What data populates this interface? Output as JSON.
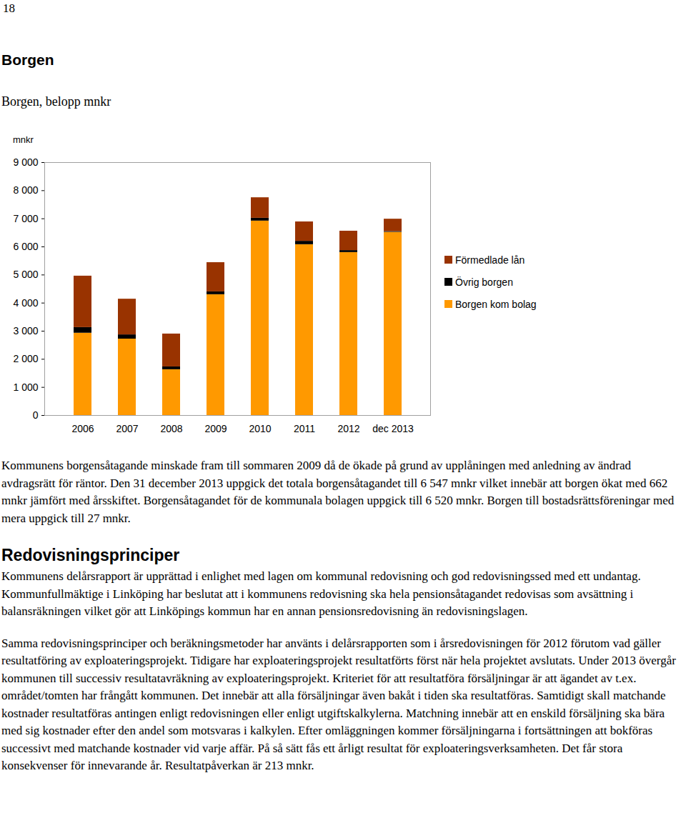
{
  "page_number": "18",
  "heading": "Borgen",
  "chart_data": {
    "type": "bar",
    "stacked": true,
    "title": "Borgen, belopp mnkr",
    "y_label": "mnkr",
    "categories": [
      "2006",
      "2007",
      "2008",
      "2009",
      "2010",
      "2011",
      "2012",
      "dec 2013"
    ],
    "series": [
      {
        "name": "Borgen kom bolag",
        "color": "#ff9900",
        "values": [
          2930,
          2720,
          1630,
          4300,
          6920,
          6080,
          5800,
          6520
        ]
      },
      {
        "name": "Övrig borgen",
        "color": "#000000",
        "values": [
          200,
          150,
          100,
          100,
          100,
          120,
          70,
          27
        ]
      },
      {
        "name": "Förmedlade lån",
        "color": "#993300",
        "values": [
          1830,
          1270,
          1170,
          1040,
          730,
          690,
          690,
          440
        ]
      }
    ],
    "ylim": [
      0,
      9000
    ],
    "yticks": [
      0,
      {
        "value": 1000,
        "label": "1 000"
      },
      {
        "value": 2000,
        "label": "2 000"
      },
      {
        "value": 3000,
        "label": "3 000"
      },
      {
        "value": 4000,
        "label": "4 000"
      },
      {
        "value": 5000,
        "label": "5 000"
      },
      {
        "value": 6000,
        "label": "6 000"
      },
      {
        "value": 7000,
        "label": "7 000"
      },
      {
        "value": 8000,
        "label": "8 000"
      },
      {
        "value": 9000,
        "label": "9 000"
      }
    ],
    "grid": false,
    "legend": "right"
  },
  "paragraphs": [
    "Kommunens borgensåtagande minskade fram till sommaren 2009 då de ökade på grund av upplåningen med anledning av ändrad avdragsrätt för räntor. Den 31 december 2013 uppgick det totala borgensåtagandet till 6 547 mnkr vilket innebär att borgen ökat med 662 mnkr jämfört med årsskiftet. Borgensåtagandet för de kommunala bolagen uppgick till 6 520 mnkr. Borgen till bostadsrättsföreningar med mera uppgick till 27 mnkr."
  ],
  "section": {
    "heading": "Redovisningsprinciper",
    "paragraphs": [
      "Kommunens delårsrapport är upprättad i enlighet med lagen om kommunal redovisning och god redovisningssed med ett undantag. Kommunfullmäktige i Linköping har beslutat att i kommunens redovisning ska hela pensionsåtagandet redovisas som avsättning i balansräkningen vilket gör att Linköpings kommun har en annan pensionsredovisning än redovisningslagen.",
      "Samma redovisningsprinciper och beräkningsmetoder har använts i delårsrapporten som i årsredovisningen för 2012 förutom vad gäller resultatföring av exploateringsprojekt. Tidigare har exploateringsprojekt resultatförts först när hela projektet avslutats. Under 2013 övergår kommunen till successiv resultatavräkning av exploateringsprojekt. Kriteriet för att resultatföra försäljningar är att ägandet av t.ex. området/tomten har frångått kommunen. Det innebär att alla försäljningar även bakåt i tiden ska resultatföras. Samtidigt skall matchande kostnader resultatföras antingen enligt redovisningen eller enligt utgiftskalkylerna. Matchning innebär att en enskild försäljning ska bära med sig kostnader efter den andel som motsvaras i kalkylen. Efter omläggningen kommer försäljningarna i fortsättningen att bokföras successivt med matchande kostnader vid varje affär. På så sätt fås ett årligt resultat för exploateringsverksamheten. Det får stora konsekvenser för innevarande år. Resultatpåverkan är 213 mnkr."
    ]
  }
}
